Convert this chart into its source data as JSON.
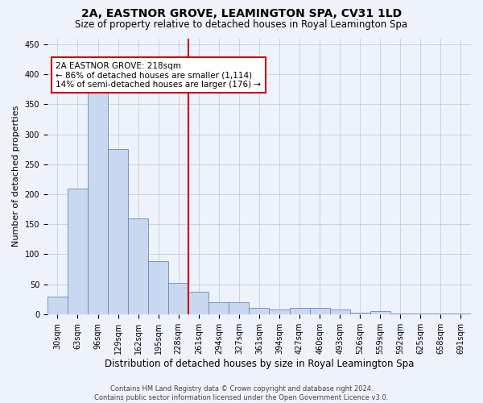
{
  "title": "2A, EASTNOR GROVE, LEAMINGTON SPA, CV31 1LD",
  "subtitle": "Size of property relative to detached houses in Royal Leamington Spa",
  "xlabel": "Distribution of detached houses by size in Royal Leamington Spa",
  "ylabel": "Number of detached properties",
  "footer_line1": "Contains HM Land Registry data © Crown copyright and database right 2024.",
  "footer_line2": "Contains public sector information licensed under the Open Government Licence v3.0.",
  "bar_labels": [
    "30sqm",
    "63sqm",
    "96sqm",
    "129sqm",
    "162sqm",
    "195sqm",
    "228sqm",
    "261sqm",
    "294sqm",
    "327sqm",
    "361sqm",
    "394sqm",
    "427sqm",
    "460sqm",
    "493sqm",
    "526sqm",
    "559sqm",
    "592sqm",
    "625sqm",
    "658sqm",
    "691sqm"
  ],
  "bar_values": [
    30,
    210,
    375,
    275,
    160,
    88,
    52,
    38,
    20,
    20,
    10,
    8,
    10,
    10,
    8,
    3,
    5,
    1,
    1,
    1,
    1
  ],
  "bar_color": "#c8d8f0",
  "bar_edge_color": "#6888c0",
  "vline_idx": 6,
  "vline_color": "#cc0000",
  "annotation_line1": "2A EASTNOR GROVE: 218sqm",
  "annotation_line2": "← 86% of detached houses are smaller (1,114)",
  "annotation_line3": "14% of semi-detached houses are larger (176) →",
  "annotation_box_color": "white",
  "annotation_box_edge_color": "#cc0000",
  "ylim": [
    0,
    460
  ],
  "yticks": [
    0,
    50,
    100,
    150,
    200,
    250,
    300,
    350,
    400,
    450
  ],
  "grid_color": "#c8ccd8",
  "background_color": "#eef2fa",
  "title_fontsize": 10,
  "subtitle_fontsize": 8.5,
  "ylabel_fontsize": 8,
  "xlabel_fontsize": 8.5,
  "tick_fontsize": 7,
  "footer_fontsize": 6,
  "annotation_fontsize": 7.5
}
